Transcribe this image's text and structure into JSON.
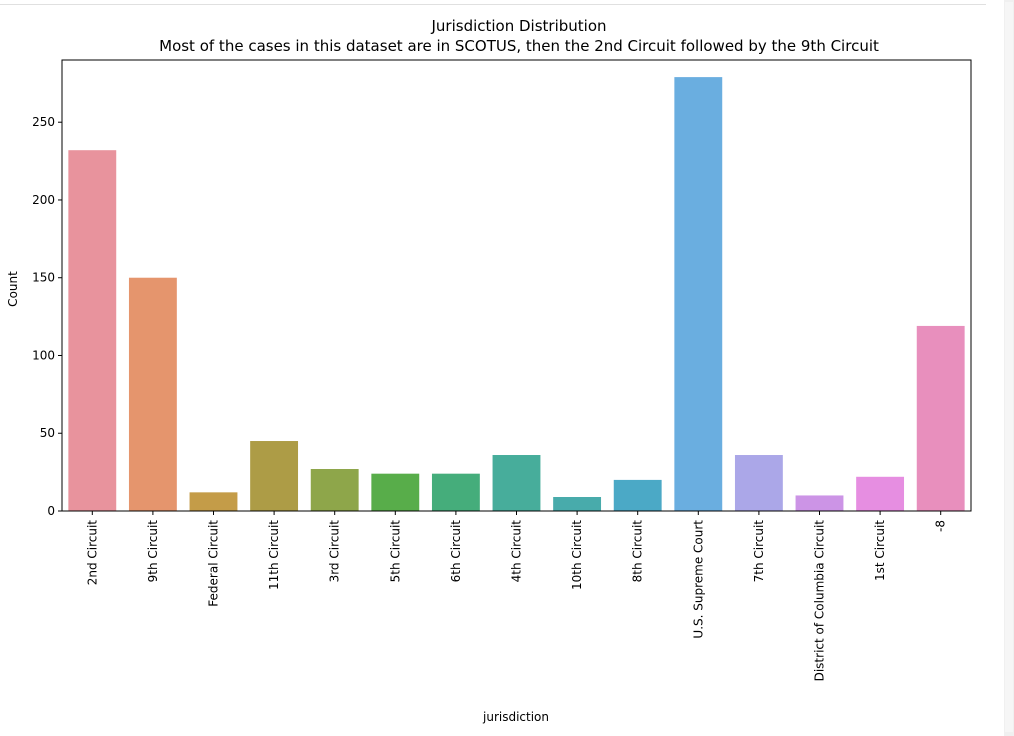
{
  "chart_data": {
    "type": "bar",
    "title": "Jurisdiction Distribution",
    "subtitle": "Most of the cases in this dataset are in SCOTUS, then the 2nd Circuit followed by the 9th Circuit",
    "xlabel": "jurisdiction",
    "ylabel": "Count",
    "ylim": [
      0,
      290
    ],
    "yticks": [
      "0",
      "50",
      "100",
      "150",
      "200",
      "250"
    ],
    "grid": false,
    "categories": [
      "2nd Circuit",
      "9th Circuit",
      "Federal Circuit",
      "11th Circuit",
      "3rd Circuit",
      "5th Circuit",
      "6th Circuit",
      "4th Circuit",
      "10th Circuit",
      "8th Circuit",
      "U.S. Supreme Court",
      "7th Circuit",
      "District of Columbia Circuit",
      "1st Circuit",
      "-8"
    ],
    "values": [
      232,
      150,
      12,
      45,
      27,
      24,
      24,
      36,
      9,
      20,
      279,
      36,
      10,
      22,
      119
    ],
    "colors": [
      "#e8939d",
      "#e5956d",
      "#c49c48",
      "#ad9c46",
      "#8ea64a",
      "#58ad4a",
      "#45ad7b",
      "#47ad9b",
      "#48abab",
      "#4ba9c6",
      "#6aaee0",
      "#aba7e8",
      "#cc94e6",
      "#e68ee1",
      "#e88fbd"
    ]
  }
}
